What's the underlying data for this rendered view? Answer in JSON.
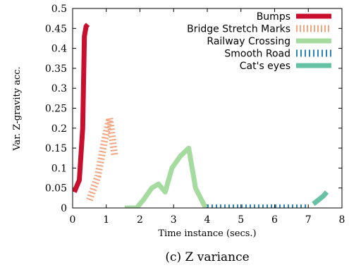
{
  "caption": "(c) Z variance",
  "chart_data": {
    "type": "line",
    "title": "",
    "xlabel": "Time instance (secs.)",
    "ylabel": "Var. Z-gravity acc.",
    "xlim": [
      0,
      8
    ],
    "ylim": [
      0,
      0.5
    ],
    "xticks": [
      "0",
      "1",
      "2",
      "3",
      "4",
      "5",
      "6",
      "7",
      "8"
    ],
    "yticks": [
      "0",
      "0.05",
      "0.1",
      "0.15",
      "0.2",
      "0.25",
      "0.3",
      "0.35",
      "0.4",
      "0.45",
      "0.5"
    ],
    "legend_position": "top-right",
    "series": [
      {
        "name": "Bumps",
        "color": "#c8102e",
        "style": "solid",
        "x": [
          0.05,
          0.2,
          0.3,
          0.35,
          0.4,
          0.45
        ],
        "y": [
          0.04,
          0.07,
          0.2,
          0.43,
          0.455,
          0.46
        ]
      },
      {
        "name": "Bridge Stretch Marks",
        "color": "#f4a582",
        "style": "dashed",
        "x": [
          0.5,
          0.75,
          0.95,
          1.1,
          1.25
        ],
        "y": [
          0.02,
          0.08,
          0.17,
          0.225,
          0.13
        ]
      },
      {
        "name": "Railway Crossing",
        "color": "#a6dba0",
        "style": "solid",
        "x": [
          1.55,
          1.9,
          2.1,
          2.35,
          2.55,
          2.75,
          2.95,
          3.2,
          3.45,
          3.65,
          3.95
        ],
        "y": [
          0.0,
          0.0,
          0.02,
          0.05,
          0.06,
          0.04,
          0.1,
          0.13,
          0.15,
          0.05,
          0.0
        ]
      },
      {
        "name": "Smooth Road",
        "color": "#2b83ba",
        "style": "dotted",
        "x": [
          4.0,
          7.0
        ],
        "y": [
          0.0,
          0.0
        ]
      },
      {
        "name": "Cat's eyes",
        "color": "#66c2a5",
        "style": "solid",
        "x": [
          7.15,
          7.3,
          7.45,
          7.55
        ],
        "y": [
          0.01,
          0.02,
          0.03,
          0.04
        ]
      }
    ]
  }
}
